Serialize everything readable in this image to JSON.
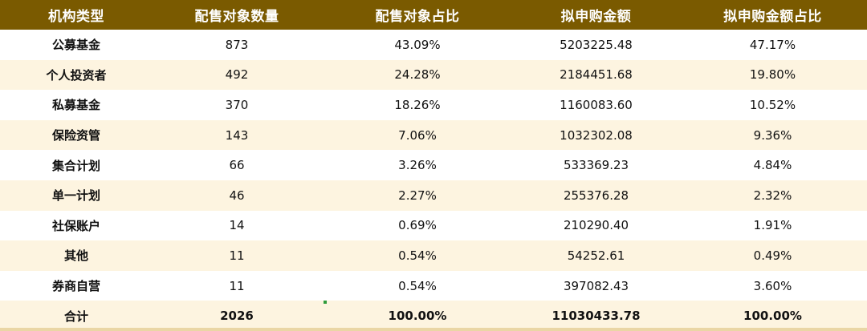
{
  "table": {
    "headers": [
      "机构类型",
      "配售对象数量",
      "配售对象占比",
      "拟申购金额",
      "拟申购金额占比"
    ],
    "rows": [
      [
        "公募基金",
        "873",
        "43.09%",
        "5203225.48",
        "47.17%"
      ],
      [
        "个人投资者",
        "492",
        "24.28%",
        "2184451.68",
        "19.80%"
      ],
      [
        "私募基金",
        "370",
        "18.26%",
        "1160083.60",
        "10.52%"
      ],
      [
        "保险资管",
        "143",
        "7.06%",
        "1032302.08",
        "9.36%"
      ],
      [
        "集合计划",
        "66",
        "3.26%",
        "533369.23",
        "4.84%"
      ],
      [
        "单一计划",
        "46",
        "2.27%",
        "255376.28",
        "2.32%"
      ],
      [
        "社保账户",
        "14",
        "0.69%",
        "210290.40",
        "1.91%"
      ],
      [
        "其他",
        "11",
        "0.54%",
        "54252.61",
        "0.49%"
      ],
      [
        "券商自营",
        "11",
        "0.54%",
        "397082.43",
        "3.60%"
      ]
    ],
    "total": [
      "合计",
      "2026",
      "100.00%",
      "11030433.78",
      "100.00%"
    ]
  },
  "colors": {
    "header_bg": "#7a5a00",
    "row_alt_bg": "#fdf4e0"
  }
}
